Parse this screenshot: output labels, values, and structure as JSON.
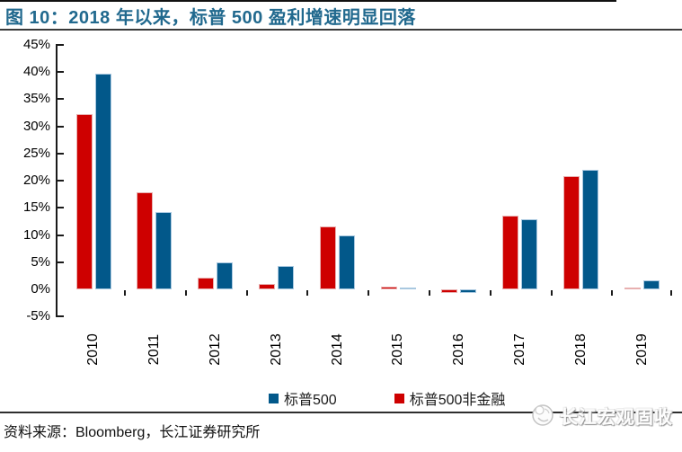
{
  "header": {
    "title": "图 10：2018 年以来，标普 500 盈利增速明显回落",
    "title_color": "#21698E"
  },
  "footer": {
    "source_note": "资料来源：Bloomberg，长江证券研究所",
    "watermark": "长江宏观固收"
  },
  "colors": {
    "sp500_blue": "#02588A",
    "nonfinancial_red": "#CE0000",
    "title_blue": "#21698E",
    "rule_dark": "#3A3A3A",
    "axis_black": "#1A1A1A"
  },
  "chart_data": {
    "type": "bar",
    "categories": [
      "2010",
      "2011",
      "2012",
      "2013",
      "2014",
      "2015",
      "2016",
      "2017",
      "2018",
      "2019"
    ],
    "series": [
      {
        "name": "标普500非金融",
        "color": "#CE0000",
        "border": "#E8B0B0",
        "values": [
          32.3,
          17.8,
          2.2,
          1.0,
          11.6,
          0.5,
          -0.6,
          13.6,
          20.8,
          0.4
        ]
      },
      {
        "name": "标普500",
        "color": "#02588A",
        "border": "#A9C8E0",
        "values": [
          39.7,
          14.2,
          5.0,
          4.3,
          9.9,
          0.3,
          -0.6,
          12.9,
          22.0,
          1.7
        ]
      }
    ],
    "legend": [
      "标普500",
      "标普500非金融"
    ],
    "legend_position": "bottom-center",
    "title": "",
    "xlabel": "",
    "ylabel": "",
    "ylim": [
      -5,
      45
    ],
    "ytick_step": 5,
    "ytick_suffix": "%",
    "grid": false,
    "bar_unit": "percent_yoy"
  }
}
